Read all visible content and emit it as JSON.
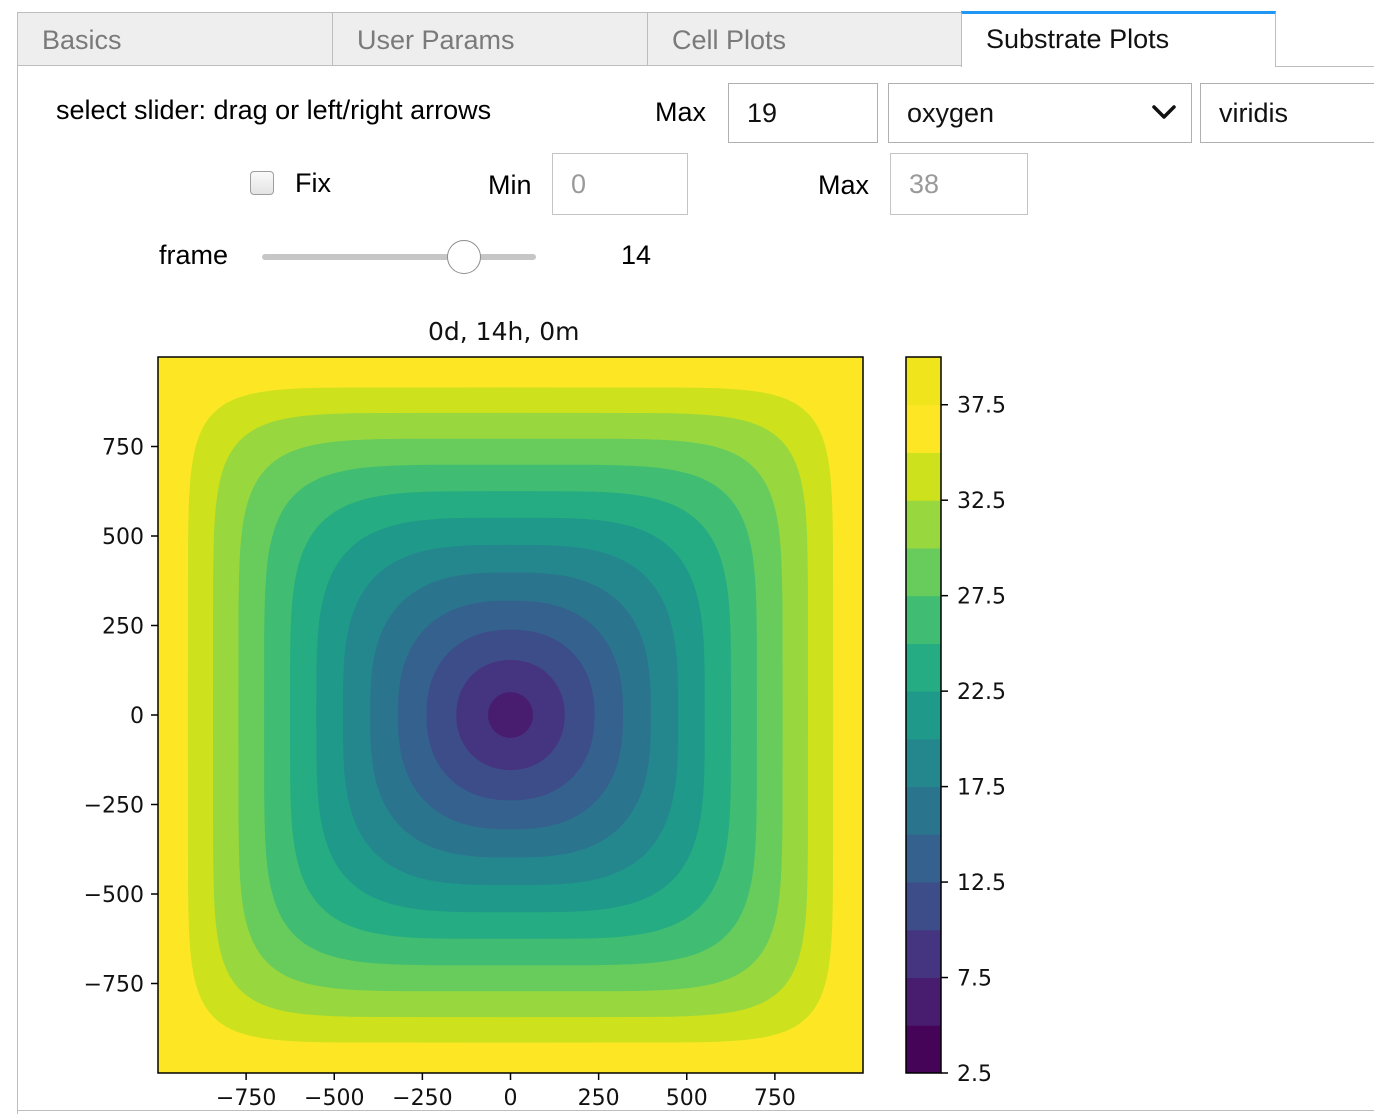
{
  "tabs": [
    {
      "label": "Basics"
    },
    {
      "label": "User Params"
    },
    {
      "label": "Cell Plots"
    },
    {
      "label": "Substrate Plots"
    }
  ],
  "controls": {
    "instruction": "select slider: drag or left/right arrows",
    "max_label": "Max",
    "max_value": "19",
    "substrate_selected": "oxygen",
    "colormap_selected": "viridis",
    "fix_label": "Fix",
    "fix_checked": false,
    "min_label": "Min",
    "fix_min_value": "0",
    "fix_max_label": "Max",
    "fix_max_value": "38",
    "frame_label": "frame",
    "frame_value": "14",
    "frame_max": "19"
  },
  "chart_data": {
    "type": "heatmap",
    "subtype": "filled-contour",
    "title": "0d, 14h, 0m",
    "colormap": "viridis",
    "x_range": [
      -1000,
      1000
    ],
    "y_range": [
      -1000,
      1000
    ],
    "xticks": [
      -750,
      -500,
      -250,
      0,
      250,
      500,
      750
    ],
    "xtick_labels": [
      "−750",
      "−500",
      "−250",
      "0",
      "250",
      "500",
      "750"
    ],
    "yticks": [
      750,
      500,
      250,
      0,
      -250,
      -500,
      -750
    ],
    "ytick_labels": [
      "750",
      "500",
      "250",
      "0",
      "−250",
      "−500",
      "−750"
    ],
    "colorbar": {
      "range": [
        2.5,
        40
      ],
      "levels": [
        2.5,
        5,
        7.5,
        10,
        12.5,
        15,
        17.5,
        20,
        22.5,
        25,
        27.5,
        30,
        32.5,
        35,
        37.5,
        40
      ],
      "ticks": [
        37.5,
        32.5,
        27.5,
        22.5,
        17.5,
        12.5,
        7.5,
        2.5
      ],
      "tick_labels": [
        "37.5",
        "32.5",
        "27.5",
        "22.5",
        "17.5",
        "12.5",
        "7.5",
        "2.5"
      ],
      "colors": [
        "#450457",
        "#481c6e",
        "#453581",
        "#3d4d8a",
        "#34618d",
        "#2b748e",
        "#24878e",
        "#1f998a",
        "#25ac82",
        "#40bd72",
        "#67cc5c",
        "#98d83e",
        "#cde11d",
        "#fde725",
        "#f0e51c"
      ]
    },
    "field": {
      "center": [
        0,
        0
      ],
      "min_value_at_center": 6,
      "max_value_at_edges": 38
    }
  }
}
